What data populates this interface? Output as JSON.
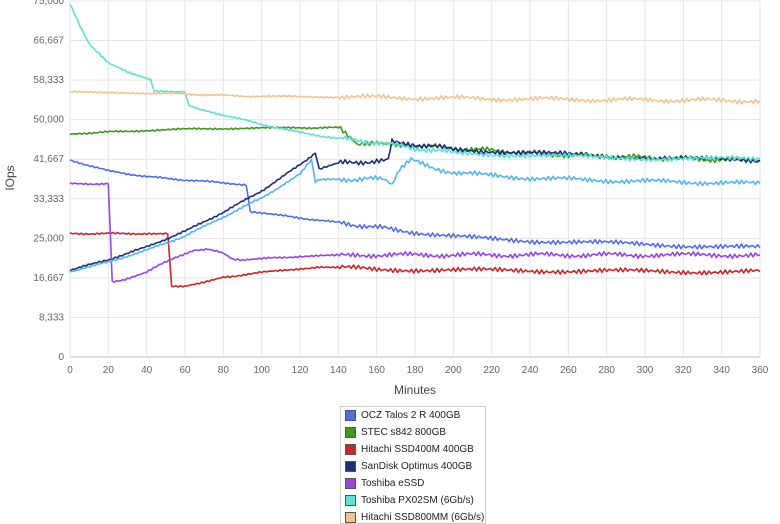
{
  "chart_data": {
    "type": "line",
    "title": "",
    "xlabel": "Minutes",
    "ylabel": "IOps",
    "xlim": [
      0,
      360
    ],
    "ylim": [
      0,
      75000
    ],
    "grid": true,
    "legend_position": "bottom",
    "x_ticks": [
      "0",
      "20",
      "40",
      "60",
      "80",
      "100",
      "120",
      "140",
      "160",
      "180",
      "200",
      "220",
      "240",
      "260",
      "280",
      "300",
      "320",
      "340",
      "360"
    ],
    "y_ticks": [
      "0",
      "8,333",
      "16,667",
      "25,000",
      "33,333",
      "41,667",
      "50,000",
      "58,333",
      "66,667",
      "75,000"
    ],
    "series": [
      {
        "name": "OCZ Talos 2 R 400GB",
        "color": "#4f6ee8",
        "x": [
          0,
          20,
          40,
          60,
          80,
          92,
          94,
          110,
          130,
          150,
          170,
          200,
          240,
          280,
          320,
          360
        ],
        "y": [
          41500,
          39200,
          38000,
          37300,
          36700,
          36300,
          30500,
          29800,
          28800,
          27800,
          26800,
          25300,
          24500,
          24000,
          23500,
          23000
        ]
      },
      {
        "name": "STEC s842 800GB",
        "color": "#3c9a1a",
        "x": [
          0,
          10,
          30,
          60,
          90,
          120,
          140,
          150,
          160,
          170,
          180,
          200,
          220,
          240,
          260,
          280,
          300,
          320,
          340,
          360
        ],
        "y": [
          47000,
          47200,
          47600,
          48000,
          48200,
          48300,
          48300,
          44500,
          45000,
          44800,
          44500,
          44000,
          43500,
          43000,
          42500,
          42300,
          42000,
          41800,
          41600,
          41500
        ]
      },
      {
        "name": "Hitachi SSD400M 400GB",
        "color": "#c9232b",
        "x": [
          0,
          20,
          40,
          51,
          53,
          60,
          70,
          80,
          100,
          130,
          160,
          200,
          240,
          280,
          320,
          360
        ],
        "y": [
          26000,
          26000,
          26000,
          26000,
          14800,
          15000,
          15800,
          16800,
          17800,
          19000,
          18500,
          18300,
          18200,
          18100,
          18000,
          18000
        ]
      },
      {
        "name": "SanDisk Optimus 400GB",
        "color": "#1b2c7a",
        "x": [
          0,
          20,
          40,
          60,
          80,
          100,
          120,
          128,
          130,
          140,
          160,
          166,
          168,
          180,
          200,
          240,
          280,
          320,
          360
        ],
        "y": [
          18300,
          20500,
          23200,
          26500,
          30500,
          35000,
          40500,
          43000,
          39500,
          40800,
          41300,
          41500,
          45500,
          44800,
          43800,
          43000,
          42300,
          41800,
          41400
        ]
      },
      {
        "name": "Toshiba eSSD",
        "color": "#9b43e0",
        "x": [
          0,
          20,
          22,
          30,
          40,
          55,
          65,
          72,
          80,
          85,
          90,
          100,
          120,
          150,
          200,
          250,
          300,
          360
        ],
        "y": [
          36500,
          36500,
          15800,
          16500,
          18000,
          21000,
          22500,
          22800,
          21800,
          20500,
          20300,
          20700,
          21200,
          21500,
          21500,
          21500,
          21500,
          21500
        ]
      },
      {
        "name": "Toshiba PX02SM (6Gb/s)",
        "color": "#58e2d8",
        "x": [
          0,
          5,
          10,
          20,
          30,
          42,
          44,
          60,
          62,
          70,
          80,
          100,
          120,
          140,
          160,
          180,
          200,
          240,
          280,
          320,
          360
        ],
        "y": [
          74500,
          70000,
          66000,
          62000,
          60000,
          58500,
          56000,
          55800,
          53000,
          52000,
          51000,
          49000,
          47300,
          46000,
          45200,
          44000,
          43000,
          42500,
          42000,
          41800,
          41700
        ]
      },
      {
        "name": "Hitachi SSD800MM (6Gb/s)",
        "color": "#f1c48c",
        "x": [
          0,
          40,
          60,
          80,
          100,
          160,
          220,
          280,
          360
        ],
        "y": [
          55800,
          55600,
          55400,
          55100,
          54900,
          54700,
          54400,
          54200,
          54000
        ]
      },
      {
        "name": "",
        "color": "#4fb8e8",
        "x": [
          0,
          20,
          40,
          60,
          80,
          100,
          120,
          126,
          128,
          130,
          150,
          164,
          168,
          172,
          178,
          190,
          210,
          240,
          270,
          300,
          330,
          360
        ],
        "y": [
          18000,
          20000,
          22500,
          25500,
          29500,
          33500,
          38500,
          41500,
          37000,
          37300,
          37500,
          37500,
          36000,
          39500,
          41500,
          39500,
          38500,
          37700,
          37300,
          37000,
          36800,
          36500
        ]
      }
    ]
  }
}
